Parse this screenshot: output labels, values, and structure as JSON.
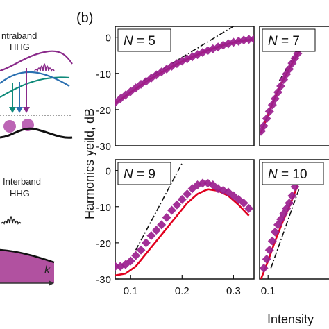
{
  "figure": {
    "panel_label": "(b)",
    "ylabel": "Harmonics yeild, dB",
    "xlabel": "Intensity",
    "left_panel": {
      "intraband_line1": "ntraband",
      "intraband_line2": "HHG",
      "interband_line1": "Interband",
      "interband_line2": "HHG",
      "k_label": "k"
    }
  },
  "colors": {
    "experiment": "#9b1e8e",
    "fit": "#e1001e",
    "guide": "#111111",
    "fill": "#a3338f"
  },
  "chart_data": [
    {
      "type": "scatter",
      "panel": "N = 5",
      "N": "5",
      "yticks": [
        0,
        -10,
        -20,
        -30
      ],
      "ylim": [
        -30,
        3
      ],
      "xticks": [],
      "xlim": [
        0.07,
        0.34
      ],
      "series": [
        {
          "kind": "data",
          "marker": "diamond",
          "x": [
            0.07,
            0.08,
            0.09,
            0.1,
            0.11,
            0.12,
            0.13,
            0.14,
            0.15,
            0.16,
            0.17,
            0.18,
            0.19,
            0.2,
            0.21,
            0.22,
            0.23,
            0.24,
            0.25,
            0.26,
            0.27,
            0.28,
            0.29,
            0.3,
            0.31,
            0.32,
            0.33,
            0.34
          ],
          "y": [
            -18,
            -17,
            -16,
            -15,
            -14,
            -13,
            -12.2,
            -11.3,
            -10.4,
            -9.6,
            -8.8,
            -8,
            -7.3,
            -6.6,
            -6,
            -5.4,
            -4.8,
            -4.2,
            -3.7,
            -3.2,
            -2.7,
            -2.2,
            -1.8,
            -1.4,
            -1.1,
            -0.8,
            -0.6,
            -0.5
          ]
        },
        {
          "kind": "fit",
          "x": [
            0.07,
            0.1,
            0.13,
            0.16,
            0.19,
            0.22,
            0.25,
            0.28,
            0.31,
            0.34
          ],
          "y": [
            -18.3,
            -15.2,
            -12.3,
            -9.7,
            -7.4,
            -5.4,
            -3.6,
            -2.2,
            -1.1,
            -0.6
          ]
        },
        {
          "kind": "guide",
          "x": [
            0.125,
            0.3
          ],
          "y": [
            -12,
            3
          ]
        }
      ]
    },
    {
      "type": "scatter",
      "panel": "N = 7",
      "N": "7",
      "yticks": [],
      "ylim": [
        -30,
        3
      ],
      "xticks": [],
      "xlim": [
        0.07,
        0.34
      ],
      "series": [
        {
          "kind": "data",
          "marker": "diamond",
          "x": [
            0.075,
            0.085,
            0.095,
            0.105,
            0.115,
            0.125,
            0.135,
            0.145,
            0.155,
            0.165,
            0.175,
            0.185,
            0.195,
            0.205
          ],
          "y": [
            -26,
            -24.5,
            -22.5,
            -20.5,
            -18.7,
            -17,
            -15.2,
            -13.5,
            -11.7,
            -10.2,
            -8.8,
            -7.2,
            -5.8,
            -4.5
          ]
        },
        {
          "kind": "fit",
          "x": [
            0.075,
            0.1,
            0.125,
            0.15,
            0.175,
            0.2,
            0.21
          ],
          "y": [
            -26.4,
            -21.4,
            -16.6,
            -12.4,
            -8.6,
            -5.2,
            -4
          ]
        },
        {
          "kind": "guide",
          "x": [
            0.14,
            0.21
          ],
          "y": [
            -12,
            -3
          ]
        }
      ]
    },
    {
      "type": "scatter",
      "panel": "N = 9",
      "N": "9",
      "yticks": [
        0,
        -10,
        -20,
        -30
      ],
      "ylim": [
        -30,
        3
      ],
      "xticks": [
        0.1,
        0.2,
        0.3
      ],
      "xlim": [
        0.07,
        0.34
      ],
      "series": [
        {
          "kind": "data",
          "marker": "diamond",
          "x": [
            0.07,
            0.08,
            0.09,
            0.1,
            0.11,
            0.12,
            0.13,
            0.14,
            0.15,
            0.16,
            0.17,
            0.18,
            0.19,
            0.2,
            0.21,
            0.22,
            0.23,
            0.24,
            0.25,
            0.26,
            0.27,
            0.28,
            0.29,
            0.3,
            0.31,
            0.32,
            0.33
          ],
          "y": [
            -26.5,
            -26.5,
            -26,
            -25,
            -23.5,
            -22,
            -20,
            -18,
            -16.5,
            -15,
            -13,
            -11,
            -9.5,
            -8,
            -6.5,
            -5,
            -4,
            -3.5,
            -3.5,
            -4,
            -5,
            -5.5,
            -6,
            -7,
            -8,
            -9,
            -10.5
          ]
        },
        {
          "kind": "fit",
          "x": [
            0.07,
            0.09,
            0.11,
            0.13,
            0.15,
            0.17,
            0.19,
            0.21,
            0.23,
            0.25,
            0.27,
            0.29,
            0.31,
            0.33
          ],
          "y": [
            -29,
            -28.5,
            -26.5,
            -23,
            -19.5,
            -16,
            -12.5,
            -9,
            -6.5,
            -5.2,
            -5.6,
            -7,
            -9.5,
            -12.5
          ]
        },
        {
          "kind": "guide",
          "x": [
            0.11,
            0.2
          ],
          "y": [
            -22,
            2
          ]
        }
      ]
    },
    {
      "type": "scatter",
      "panel": "N = 10",
      "N": "10",
      "yticks": [],
      "ylim": [
        -30,
        3
      ],
      "xticks": [
        0.1
      ],
      "xlim": [
        0.07,
        0.34
      ],
      "series": [
        {
          "kind": "data",
          "marker": "diamond",
          "x": [
            0.085,
            0.095,
            0.105,
            0.115,
            0.125,
            0.135,
            0.145,
            0.155,
            0.165,
            0.175,
            0.185,
            0.195,
            0.205
          ],
          "y": [
            -27,
            -24.5,
            -22,
            -19.5,
            -17,
            -15,
            -13.5,
            -12,
            -10.5,
            -9,
            -7,
            -4.5,
            -2
          ]
        },
        {
          "kind": "fit",
          "x": [
            0.075,
            0.1,
            0.125,
            0.15,
            0.175,
            0.2,
            0.21
          ],
          "y": [
            -30,
            -25,
            -19.5,
            -14.5,
            -10,
            -5,
            -3
          ]
        },
        {
          "kind": "guide",
          "x": [
            0.11,
            0.21
          ],
          "y": [
            -27,
            -5
          ]
        }
      ]
    }
  ]
}
